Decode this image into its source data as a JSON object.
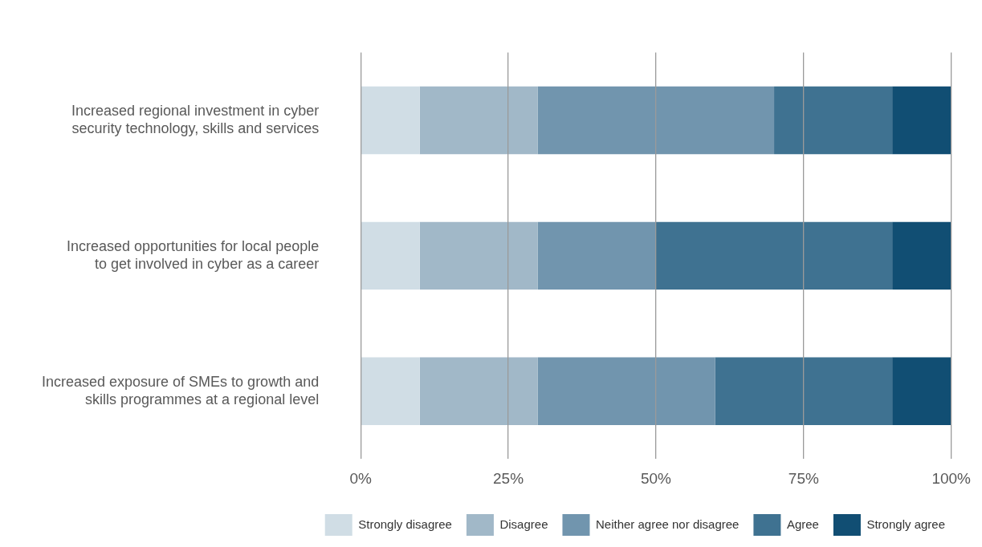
{
  "chart_data": {
    "type": "bar",
    "orientation": "horizontal",
    "stacked": true,
    "categories": [
      "Increased regional investment in cyber security technology, skills and services",
      "Increased opportunities for local people to get involved in cyber as a career",
      "Increased exposure of SMEs to growth and skills programmes at a regional level"
    ],
    "series": [
      {
        "name": "Strongly disagree",
        "color": "#d0dde5",
        "values": [
          10,
          10,
          10
        ]
      },
      {
        "name": "Disagree",
        "color": "#a1b8c8",
        "values": [
          20,
          20,
          20
        ]
      },
      {
        "name": "Neither agree nor disagree",
        "color": "#7195ae",
        "values": [
          40,
          20,
          30
        ]
      },
      {
        "name": "Agree",
        "color": "#3f7291",
        "values": [
          20,
          40,
          30
        ]
      },
      {
        "name": "Strongly agree",
        "color": "#114e73",
        "values": [
          10,
          10,
          10
        ]
      }
    ],
    "xlim": [
      0,
      100
    ],
    "xticks": [
      {
        "value": 0,
        "label": "0%"
      },
      {
        "value": 25,
        "label": "25%"
      },
      {
        "value": 50,
        "label": "50%"
      },
      {
        "value": 75,
        "label": "75%"
      },
      {
        "value": 100,
        "label": "100%"
      }
    ],
    "grid": "x",
    "legend": "bottom right"
  }
}
